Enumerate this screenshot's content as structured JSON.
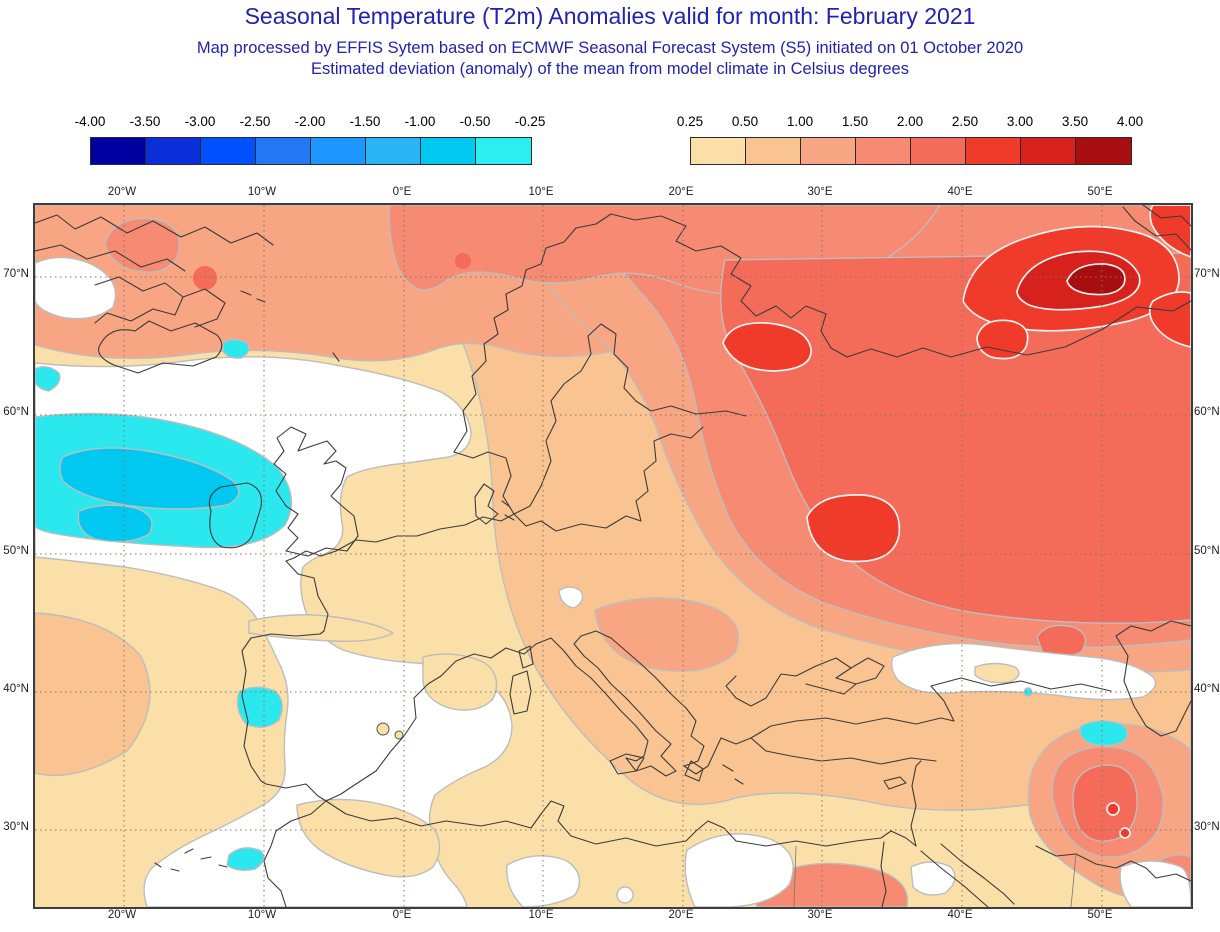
{
  "header": {
    "title": "Seasonal Temperature (T2m) Anomalies valid for month: February 2021",
    "subtitle1": "Map processed by EFFIS Sytem based on ECMWF Seasonal Forecast System (S5) initiated on 01 October 2020",
    "subtitle2": "Estimated deviation (anomaly) of the mean from model climate in Celsius degrees",
    "text_color": "#2121b4"
  },
  "legend": {
    "units": "Celsius degrees",
    "negative": {
      "ticks": [
        "-4.00",
        "-3.50",
        "-3.00",
        "-2.50",
        "-2.00",
        "-1.50",
        "-1.00",
        "-0.50",
        "-0.25"
      ],
      "colors": [
        "#0000A0",
        "#0A2FD8",
        "#0050FF",
        "#2478F5",
        "#1E96FF",
        "#28B4F5",
        "#00C8F0",
        "#2BEEF0"
      ]
    },
    "positive": {
      "ticks": [
        "0.25",
        "0.50",
        "1.00",
        "1.50",
        "2.00",
        "2.50",
        "3.00",
        "3.50",
        "4.00"
      ],
      "colors": [
        "#FADFA8",
        "#F9C491",
        "#F8A584",
        "#F68A72",
        "#F56B59",
        "#F03B2B",
        "#D6211C",
        "#A80E10"
      ]
    }
  },
  "map": {
    "lon_labels": [
      "20°W",
      "10°W",
      "0°E",
      "10°E",
      "20°E",
      "30°E",
      "40°E",
      "50°E"
    ],
    "lat_labels": [
      "70°N",
      "60°N",
      "50°N",
      "40°N",
      "30°N"
    ],
    "neutral_range_label": "-0.25 to 0.25 (white)"
  }
}
